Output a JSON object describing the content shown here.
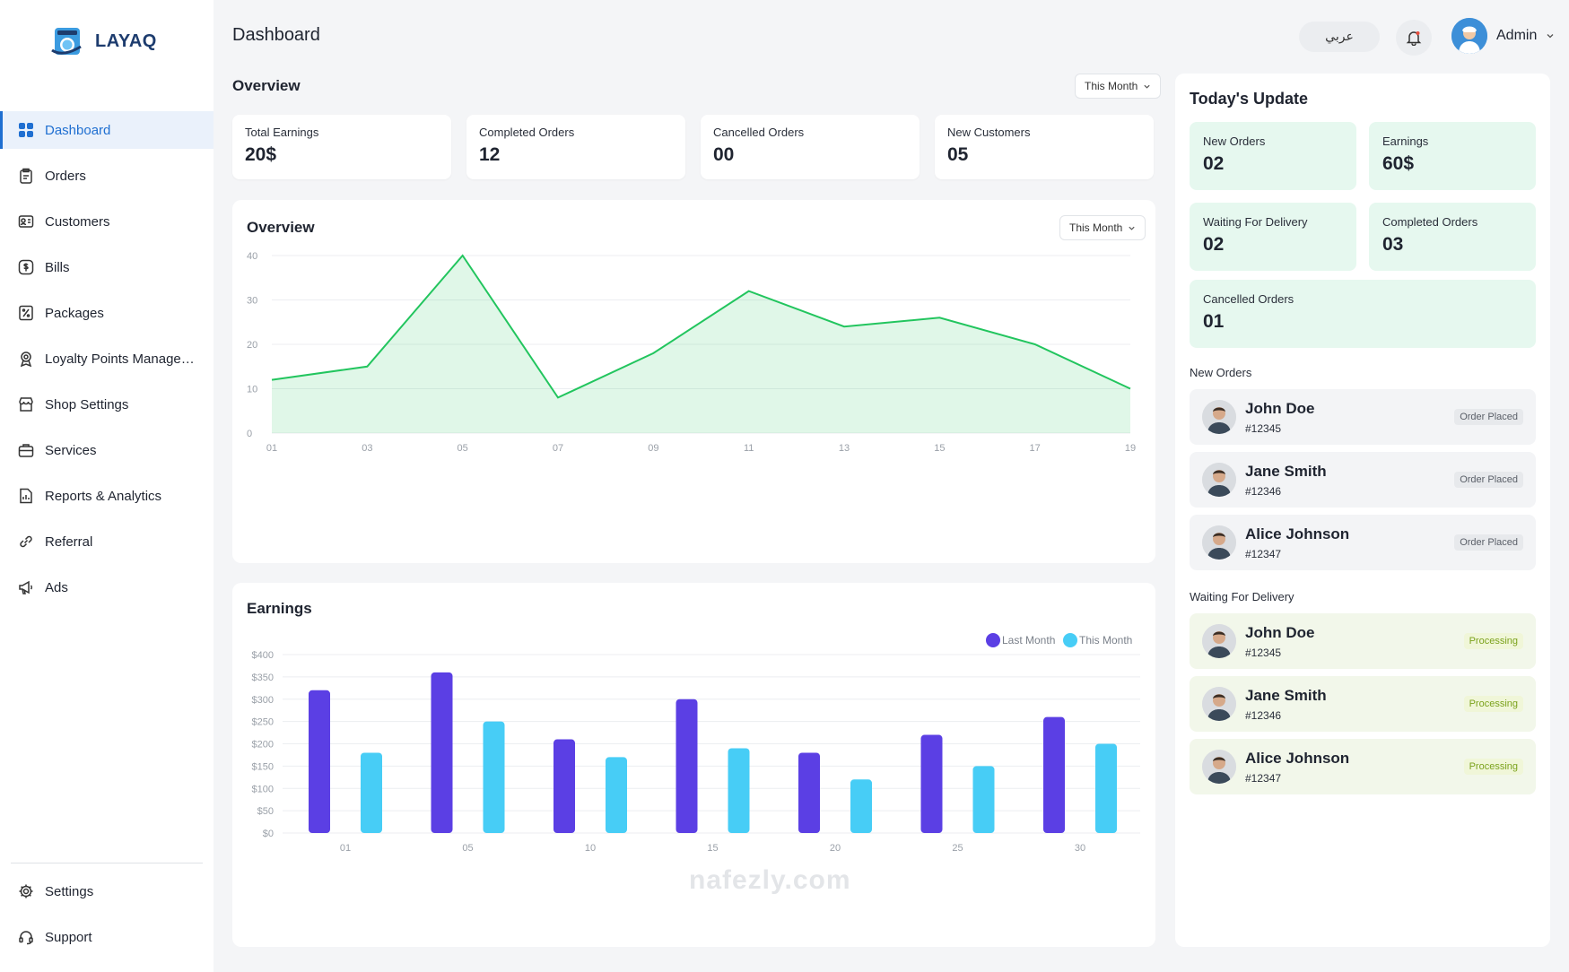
{
  "brand": {
    "name": "LAYAQ"
  },
  "sidebar": {
    "items": [
      {
        "label": "Dashboard",
        "icon": "grid-icon",
        "active": true
      },
      {
        "label": "Orders",
        "icon": "clipboard-icon"
      },
      {
        "label": "Customers",
        "icon": "id-card-icon"
      },
      {
        "label": "Bills",
        "icon": "dollar-icon"
      },
      {
        "label": "Packages",
        "icon": "percent-icon"
      },
      {
        "label": "Loyalty Points Management",
        "icon": "award-icon"
      },
      {
        "label": "Shop Settings",
        "icon": "shop-icon"
      },
      {
        "label": "Services",
        "icon": "briefcase-icon"
      },
      {
        "label": "Reports & Analytics",
        "icon": "report-icon"
      },
      {
        "label": "Referral",
        "icon": "link-icon"
      },
      {
        "label": "Ads",
        "icon": "megaphone-icon"
      }
    ],
    "bottom_items": [
      {
        "label": "Settings",
        "icon": "gear-icon"
      },
      {
        "label": "Support",
        "icon": "headset-icon"
      }
    ]
  },
  "header": {
    "title": "Dashboard",
    "language_button": "عربي",
    "admin_name": "Admin"
  },
  "overview": {
    "title": "Overview",
    "period": "This Month",
    "stats": [
      {
        "label": "Total Earnings",
        "value": "20$"
      },
      {
        "label": "Completed Orders",
        "value": "12"
      },
      {
        "label": "Cancelled Orders",
        "value": "00"
      },
      {
        "label": "New Customers",
        "value": "05"
      }
    ]
  },
  "overview_chart_panel": {
    "title": "Overview",
    "period": "This Month"
  },
  "earnings_panel": {
    "title": "Earnings"
  },
  "chart_data": [
    {
      "type": "area",
      "title": "Overview",
      "x": [
        "01",
        "03",
        "05",
        "07",
        "09",
        "11",
        "13",
        "15",
        "17",
        "19"
      ],
      "values": [
        12,
        15,
        40,
        8,
        18,
        32,
        24,
        26,
        20,
        10
      ],
      "ylim": [
        0,
        40
      ],
      "yticks": [
        0,
        10,
        20,
        30,
        40
      ],
      "grid": true,
      "color": "#22c55e"
    },
    {
      "type": "bar",
      "title": "Earnings",
      "categories": [
        "01",
        "05",
        "10",
        "15",
        "20",
        "25",
        "30"
      ],
      "series": [
        {
          "name": "Last Month",
          "color": "#5b3fe4",
          "values": [
            320,
            360,
            210,
            300,
            180,
            220,
            260
          ]
        },
        {
          "name": "This Month",
          "color": "#47cdf6",
          "values": [
            180,
            250,
            170,
            190,
            120,
            150,
            200
          ]
        }
      ],
      "ylim": [
        0,
        400
      ],
      "yticks": [
        "$0",
        "$50",
        "$100",
        "$150",
        "$200",
        "$250",
        "$300",
        "$350",
        "$400"
      ],
      "legend": "top-right",
      "grid": true
    }
  ],
  "today": {
    "title": "Today's Update",
    "cards": [
      {
        "label": "New Orders",
        "value": "02"
      },
      {
        "label": "Earnings",
        "value": "60$"
      },
      {
        "label": "Waiting For Delivery",
        "value": "02"
      },
      {
        "label": "Completed Orders",
        "value": "03"
      },
      {
        "label": "Cancelled Orders",
        "value": "01"
      }
    ],
    "new_orders_heading": "New Orders",
    "new_orders": [
      {
        "name": "John Doe",
        "id": "#12345",
        "status": "Order Placed"
      },
      {
        "name": "Jane Smith",
        "id": "#12346",
        "status": "Order Placed"
      },
      {
        "name": "Alice Johnson",
        "id": "#12347",
        "status": "Order Placed"
      }
    ],
    "waiting_heading": "Waiting For Delivery",
    "waiting_orders": [
      {
        "name": "John Doe",
        "id": "#12345",
        "status": "Processing"
      },
      {
        "name": "Jane Smith",
        "id": "#12346",
        "status": "Processing"
      },
      {
        "name": "Alice Johnson",
        "id": "#12347",
        "status": "Processing"
      }
    ]
  },
  "watermark": "nafezly.com"
}
